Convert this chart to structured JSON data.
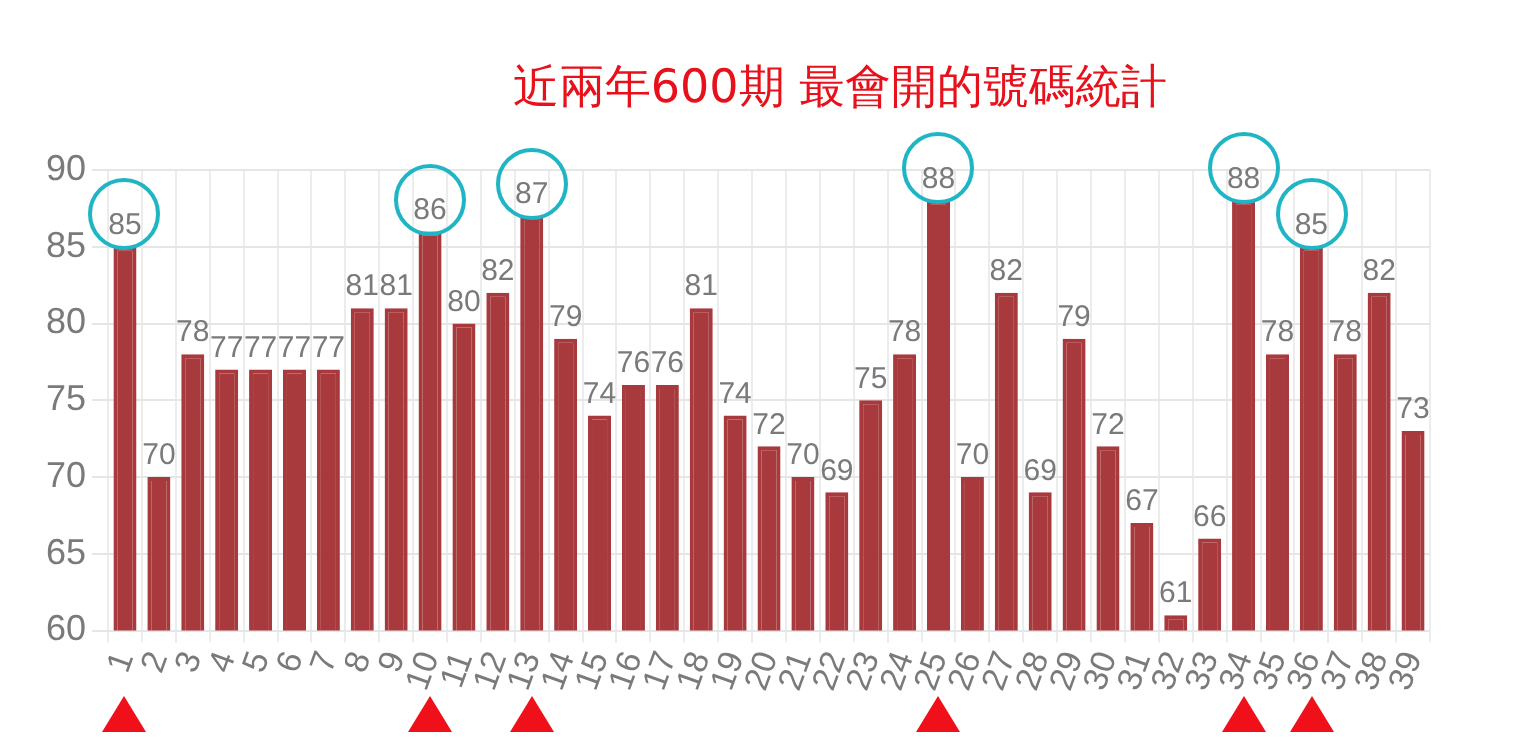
{
  "chart_data": {
    "type": "bar",
    "title": "近兩年600期  最會開的號碼統計",
    "categories": [
      "1",
      "2",
      "3",
      "4",
      "5",
      "6",
      "7",
      "8",
      "9",
      "10",
      "11",
      "12",
      "13",
      "14",
      "15",
      "16",
      "17",
      "18",
      "19",
      "20",
      "21",
      "22",
      "23",
      "24",
      "25",
      "26",
      "27",
      "28",
      "29",
      "30",
      "31",
      "32",
      "33",
      "34",
      "35",
      "36",
      "37",
      "38",
      "39"
    ],
    "values": [
      85,
      70,
      78,
      77,
      77,
      77,
      77,
      81,
      81,
      86,
      80,
      82,
      87,
      79,
      74,
      76,
      76,
      81,
      74,
      72,
      70,
      69,
      75,
      78,
      88,
      70,
      82,
      69,
      79,
      72,
      67,
      61,
      66,
      88,
      78,
      85,
      78,
      82,
      73
    ],
    "color": "#a83a3e",
    "ylim": [
      60,
      90
    ],
    "yticks": [
      60,
      65,
      70,
      75,
      80,
      85,
      90
    ],
    "grid": true,
    "data_labels": true
  }
}
